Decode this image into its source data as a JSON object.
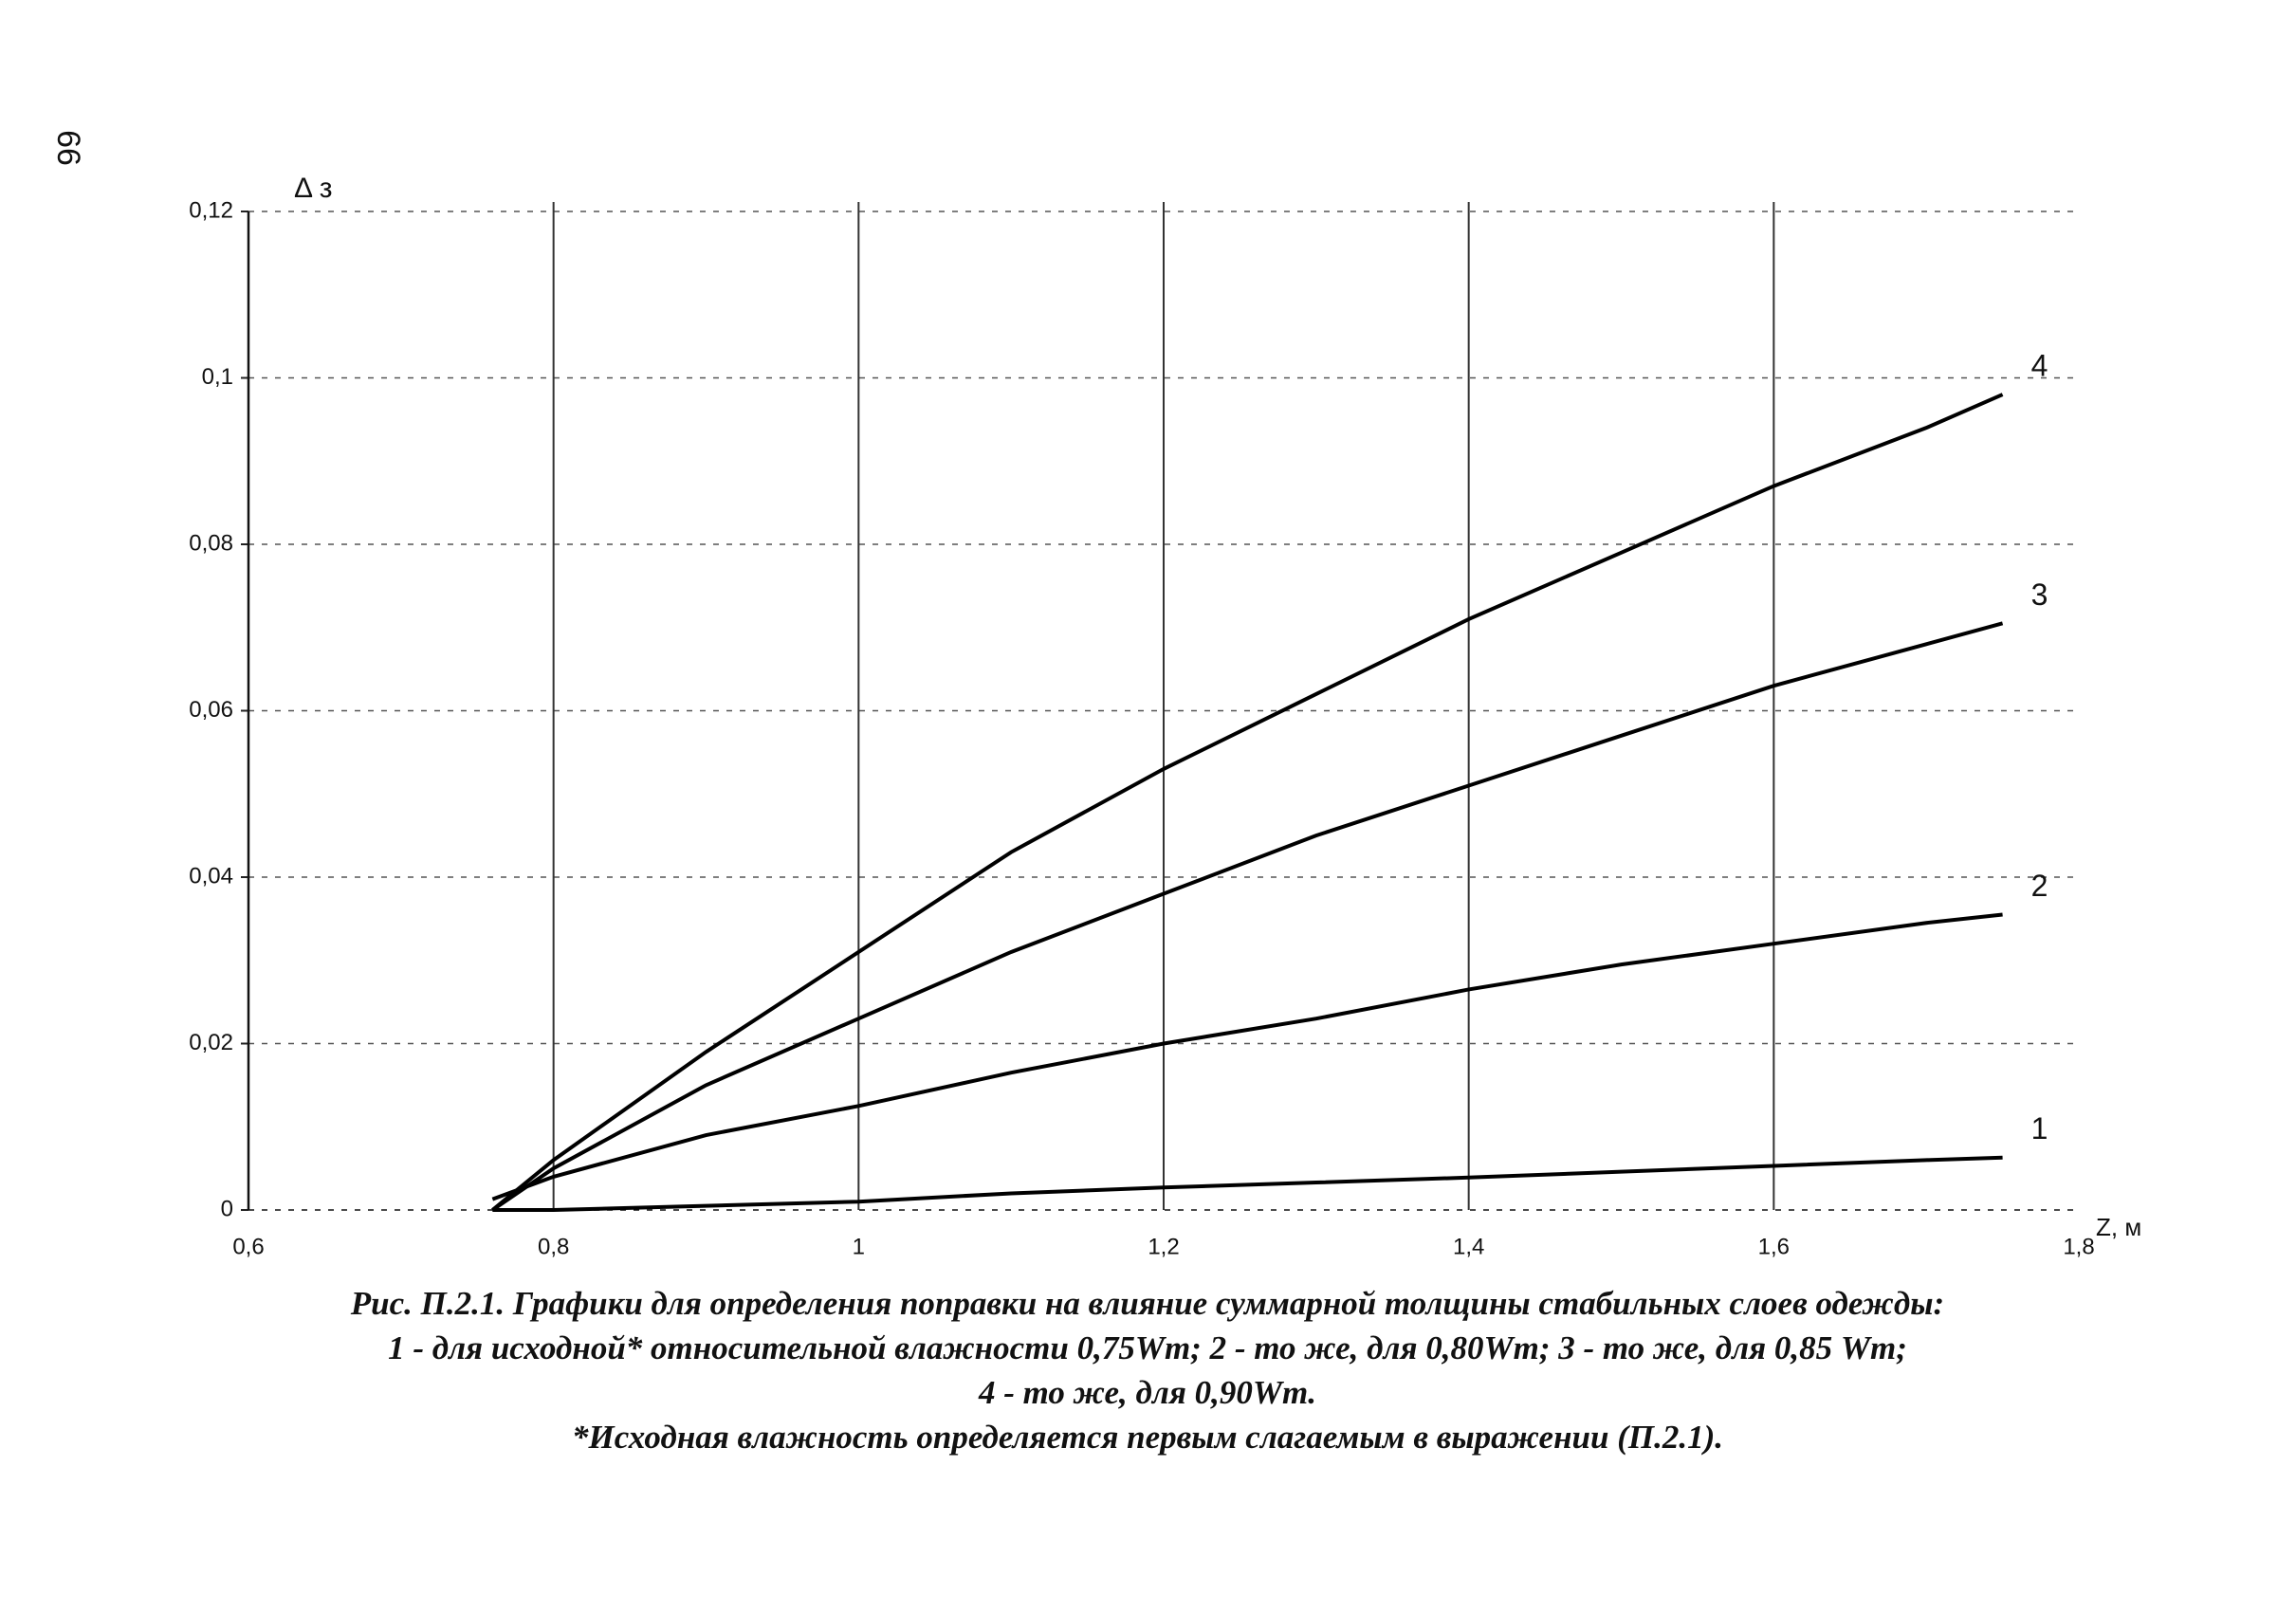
{
  "page_number": "66",
  "chart_data": {
    "type": "line",
    "ylabel": "Δ з",
    "xlabel": "Z, м",
    "x": [
      0.76,
      0.8,
      0.9,
      1.0,
      1.1,
      1.2,
      1.3,
      1.4,
      1.5,
      1.6,
      1.7,
      1.75
    ],
    "series": [
      {
        "name": "1",
        "color": "#000000",
        "values": [
          0,
          0,
          0.0005,
          0.001,
          0.002,
          0.0027,
          0.0033,
          0.0039,
          0.0046,
          0.0053,
          0.006,
          0.0063
        ]
      },
      {
        "name": "2",
        "color": "#000000",
        "values": [
          0.0013,
          0.004,
          0.009,
          0.0125,
          0.0165,
          0.02,
          0.023,
          0.0265,
          0.0295,
          0.032,
          0.0345,
          0.0355
        ]
      },
      {
        "name": "3",
        "color": "#000000",
        "values": [
          0,
          0.005,
          0.015,
          0.023,
          0.031,
          0.038,
          0.045,
          0.051,
          0.057,
          0.063,
          0.068,
          0.0705
        ]
      },
      {
        "name": "4",
        "color": "#000000",
        "values": [
          0,
          0.006,
          0.019,
          0.031,
          0.043,
          0.053,
          0.062,
          0.071,
          0.079,
          0.087,
          0.094,
          0.098
        ]
      }
    ],
    "xlim": [
      0.6,
      1.8
    ],
    "xticks": [
      {
        "value": 0.6,
        "label": "0,6"
      },
      {
        "value": 0.8,
        "label": "0,8"
      },
      1,
      {
        "value": 1.2,
        "label": "1,2"
      },
      {
        "value": 1.4,
        "label": "1,4"
      },
      {
        "value": 1.6,
        "label": "1,6"
      },
      {
        "value": 1.8,
        "label": "1,8"
      }
    ],
    "ylim": [
      0,
      0.12
    ],
    "yticks": [
      0,
      {
        "value": 0.02,
        "label": "0,02"
      },
      {
        "value": 0.04,
        "label": "0,04"
      },
      {
        "value": 0.06,
        "label": "0,06"
      },
      {
        "value": 0.08,
        "label": "0,08"
      },
      {
        "value": 0.1,
        "label": "0,1"
      },
      {
        "value": 0.12,
        "label": "0,12"
      }
    ],
    "grid": true,
    "caption": [
      "Рис. П.2.1. Графики для определения поправки на влияние суммарной толщины стабильных слоев одежды:",
      "1 - для исходной* относительной влажности 0,75Wm; 2 - то же, для 0,80Wm; 3 - то же, для 0,85 Wm;",
      "4 - то же, для 0,90Wm.",
      "*Исходная влажность определяется первым слагаемым в выражении (П.2.1)."
    ]
  }
}
